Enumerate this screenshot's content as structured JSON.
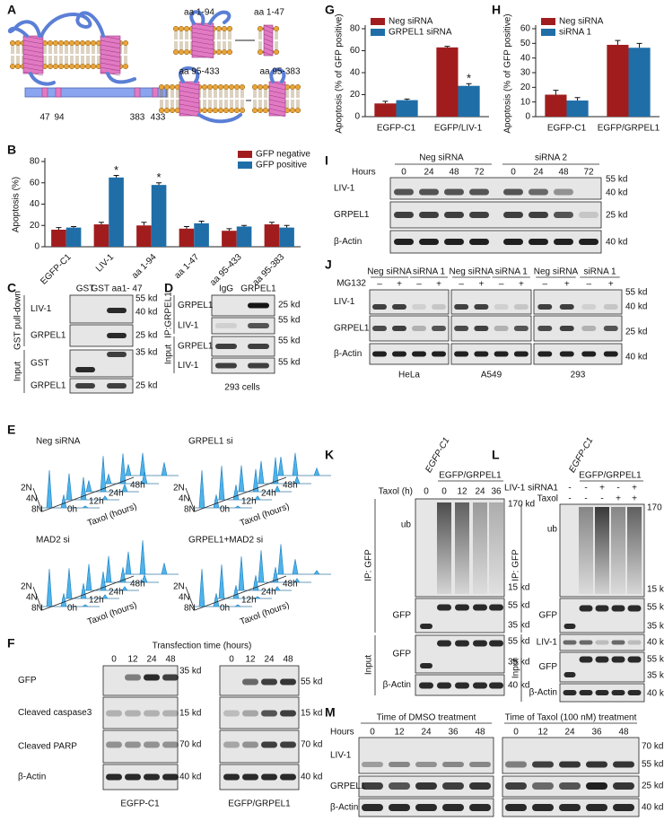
{
  "chart_data": [
    {
      "type": "bar",
      "label": "B",
      "ylabel": "Apoptosis (%)",
      "categories": [
        "EGFP-C1",
        "LIV-1",
        "aa 1-94",
        "aa 1-47",
        "aa 95-433",
        "aa 95-383"
      ],
      "series": [
        {
          "name": "GFP negative",
          "color": "#a11d1d",
          "values": [
            16,
            21,
            20,
            17,
            15,
            21
          ],
          "errors": [
            2,
            2,
            3,
            2,
            2,
            2
          ]
        },
        {
          "name": "GFP positive",
          "color": "#1f6ea8",
          "values": [
            18,
            65,
            58,
            22,
            19,
            18
          ],
          "errors": [
            1,
            2,
            2,
            2,
            1,
            2
          ]
        }
      ],
      "ylim": [
        0,
        80
      ],
      "yticks": [
        0,
        20,
        40,
        60,
        80
      ],
      "legend": "upper right",
      "xtick_rotation": 45,
      "annotations": [
        {
          "text": "*",
          "x": "LIV-1",
          "series": "GFP positive"
        },
        {
          "text": "*",
          "x": "aa 1-94",
          "series": "GFP positive"
        }
      ]
    },
    {
      "type": "bar",
      "label": "G",
      "ylabel": "Apoptosis (% of GFP positive)",
      "categories": [
        "EGFP-C1",
        "EGFP/LIV-1"
      ],
      "series": [
        {
          "name": "Neg siRNA",
          "color": "#a11d1d",
          "values": [
            12,
            63
          ],
          "errors": [
            2,
            1
          ]
        },
        {
          "name": "GRPEL1 siRNA",
          "color": "#1f6ea8",
          "values": [
            15,
            28
          ],
          "errors": [
            1,
            2
          ]
        }
      ],
      "ylim": [
        0,
        80
      ],
      "yticks": [
        0,
        20,
        40,
        60,
        80
      ],
      "legend": "upper left",
      "annotations": [
        {
          "text": "*",
          "x": "EGFP/LIV-1",
          "series": "GRPEL1 siRNA"
        }
      ]
    },
    {
      "type": "bar",
      "label": "H",
      "ylabel": "Apoptosis (% of GFP positive)",
      "categories": [
        "EGFP-C1",
        "EGFP/GRPEL1"
      ],
      "series": [
        {
          "name": "Neg siRNA",
          "color": "#a11d1d",
          "values": [
            15,
            49
          ],
          "errors": [
            3,
            3
          ]
        },
        {
          "name": "siRNA 1",
          "color": "#1f6ea8",
          "values": [
            11,
            47
          ],
          "errors": [
            2,
            3
          ]
        }
      ],
      "ylim": [
        0,
        60
      ],
      "yticks": [
        0,
        10,
        20,
        30,
        40,
        50,
        60
      ],
      "legend": "upper left"
    }
  ],
  "figure": {
    "A": {
      "label": "A",
      "constructs": [
        "aa 1-94",
        "aa 1-47",
        "aa 95-433",
        "aa 95-383"
      ],
      "residues": [
        47,
        94,
        383,
        433
      ]
    },
    "C": {
      "label": "C",
      "lanes": [
        "GST",
        "GST aa1- 47"
      ],
      "groups": [
        "GST pull-down",
        "Input"
      ],
      "rows": [
        "LIV-1",
        "GRPEL1",
        "GST",
        "GRPEL1"
      ],
      "markers": [
        "55 kd",
        "40 kd",
        "25 kd",
        "35 kd",
        "25 kd"
      ]
    },
    "D": {
      "label": "D",
      "lanes": [
        "IgG",
        "GRPEL1"
      ],
      "groups": [
        "IP:GRPEL1",
        "Input"
      ],
      "rows": [
        "GRPEL1",
        "LIV-1",
        "GRPEL1",
        "LIV-1"
      ],
      "markers": [
        "25 kd",
        "55 kd",
        "55 kd",
        "55 kd"
      ],
      "caption": "293 cells"
    },
    "E": {
      "label": "E",
      "plots": [
        "Neg siRNA",
        "GRPEL1 si",
        "MAD2 si",
        "GRPEL1+MAD2 si"
      ],
      "dna": [
        "2N",
        "4N",
        "8N"
      ],
      "times": [
        "0h",
        "12h",
        "24h",
        "48h"
      ],
      "axis": "Taxol (hours)"
    },
    "F": {
      "label": "F",
      "title": "Transfection time (hours)",
      "lanes": [
        0,
        12,
        24,
        48
      ],
      "rows": [
        "GFP",
        "Cleaved caspase3",
        "Cleaved PARP",
        "β-Actin"
      ],
      "markers_left": [
        "35 kd",
        "15 kd",
        "70 kd",
        "40 kd"
      ],
      "markers_right": [
        "55 kd",
        "15 kd",
        "70 kd",
        "40 kd"
      ],
      "captions": [
        "EGFP-C1",
        "EGFP/GRPEL1"
      ]
    },
    "I": {
      "label": "I",
      "hours": "Hours",
      "groups": [
        "Neg siRNA",
        "siRNA 2"
      ],
      "lanes": [
        0,
        24,
        48,
        72
      ],
      "rows": [
        "LIV-1",
        "GRPEL1",
        "β-Actin"
      ],
      "markers": [
        "55 kd",
        "40 kd",
        "25 kd",
        "40 kd"
      ]
    },
    "J": {
      "label": "J",
      "groups": [
        "Neg siRNA",
        "siRNA 1"
      ],
      "treatment": "MG132",
      "signs": [
        "–",
        "+"
      ],
      "rows": [
        "LIV-1",
        "GRPEL1",
        "β-Actin"
      ],
      "markers": [
        "55 kd",
        "40 kd",
        "25 kd",
        "40 kd"
      ],
      "cells": [
        "HeLa",
        "A549",
        "293"
      ]
    },
    "K": {
      "label": "K",
      "control": "EGFP-C1",
      "construct": "EGFP/GRPEL1",
      "treatment": "Taxol (h)",
      "lanes": [
        0,
        0,
        12,
        24,
        36
      ],
      "groups": [
        "IP: GFP",
        "Input"
      ],
      "rows": [
        "ub",
        "GFP",
        "GFP",
        "β-Actin"
      ],
      "markers": [
        "170 kd",
        "15 kd",
        "55 kd",
        "35 kd",
        "55 kd",
        "35 kd",
        "40 kd"
      ]
    },
    "L": {
      "label": "L",
      "control": "EGFP-C1",
      "construct": "EGFP/GRPEL1",
      "conditions": [
        {
          "name": "LIV-1 siRNA1",
          "signs": [
            "-",
            "-",
            "+",
            "-",
            "+"
          ]
        },
        {
          "name": "Taxol",
          "signs": [
            "-",
            "-",
            "-",
            "+",
            "+"
          ]
        }
      ],
      "groups": [
        "IP: GFP",
        "Input"
      ],
      "rows": [
        "ub",
        "GFP",
        "LIV-1",
        "GFP",
        "β-Actin"
      ],
      "markers": [
        "170 kd",
        "15 kd",
        "55 kd",
        "35 kd",
        "40 kd",
        "55 kd",
        "35 kd",
        "40 kd"
      ]
    },
    "M": {
      "label": "M",
      "groups": [
        "Time of DMSO treatment",
        "Time of Taxol (100 nM) treatment"
      ],
      "hours": "Hours",
      "lanes": [
        0,
        12,
        24,
        36,
        48
      ],
      "rows": [
        "LIV-1",
        "GRPEL1",
        "β-Actin"
      ],
      "markers": [
        "70 kd",
        "55 kd",
        "25 kd",
        "40 kd"
      ]
    }
  }
}
